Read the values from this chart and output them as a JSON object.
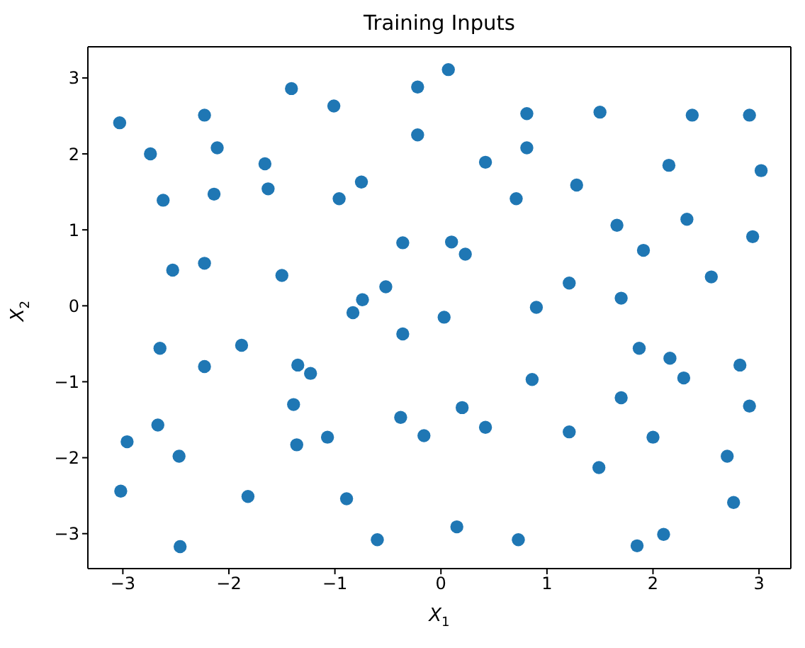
{
  "chart_data": {
    "type": "scatter",
    "title": "Training Inputs",
    "xlabel": "X$_{1}$",
    "ylabel": "X$_{2}$",
    "x": [
      -3.03,
      -2.74,
      -2.62,
      -2.23,
      -2.11,
      -2.14,
      -1.41,
      -1.66,
      -1.63,
      -1.01,
      -0.96,
      -0.75,
      -0.22,
      -0.22,
      0.07,
      -2.53,
      -2.23,
      -1.5,
      -0.36,
      -0.52,
      -0.74,
      -0.83,
      0.81,
      1.5,
      2.37,
      2.91,
      0.81,
      0.42,
      2.15,
      3.02,
      1.28,
      0.71,
      1.66,
      2.32,
      2.94,
      0.1,
      0.23,
      1.91,
      2.55,
      1.21,
      1.7,
      0.9,
      0.03,
      -2.65,
      -1.88,
      -2.23,
      -1.35,
      -1.23,
      -0.36,
      -1.39,
      -2.67,
      -2.96,
      -2.47,
      -1.36,
      -1.07,
      -0.38,
      -0.16,
      -3.02,
      -1.82,
      -0.89,
      -2.46,
      -0.6,
      1.87,
      2.16,
      2.82,
      2.29,
      0.86,
      1.7,
      2.91,
      0.2,
      0.42,
      1.21,
      2.0,
      2.7,
      1.49,
      2.76,
      0.15,
      0.73,
      2.1,
      1.85
    ],
    "values": [
      2.41,
      2.0,
      1.39,
      2.51,
      2.08,
      1.47,
      2.86,
      1.87,
      1.54,
      2.63,
      1.41,
      1.63,
      2.88,
      2.25,
      3.11,
      0.47,
      0.56,
      0.4,
      0.83,
      0.25,
      0.08,
      -0.09,
      2.53,
      2.55,
      2.51,
      2.51,
      2.08,
      1.89,
      1.85,
      1.78,
      1.59,
      1.41,
      1.06,
      1.14,
      0.91,
      0.84,
      0.68,
      0.73,
      0.38,
      0.3,
      0.1,
      -0.02,
      -0.15,
      -0.56,
      -0.52,
      -0.8,
      -0.78,
      -0.89,
      -0.37,
      -1.3,
      -1.57,
      -1.79,
      -1.98,
      -1.83,
      -1.73,
      -1.47,
      -1.71,
      -2.44,
      -2.51,
      -2.54,
      -3.17,
      -3.08,
      -0.56,
      -0.69,
      -0.78,
      -0.95,
      -0.97,
      -1.21,
      -1.32,
      -1.34,
      -1.6,
      -1.66,
      -1.73,
      -1.98,
      -2.13,
      -2.59,
      -2.91,
      -3.08,
      -3.01,
      -3.16
    ],
    "color": "#1f77b4",
    "marker": "circle",
    "xlim": [
      -3.33,
      3.3
    ],
    "xticks": [
      -3,
      -2,
      -1,
      0,
      1,
      2,
      3
    ],
    "ylim": [
      -3.46,
      3.41
    ],
    "yticks": [
      -3,
      -2,
      -1,
      0,
      1,
      2,
      3
    ]
  }
}
